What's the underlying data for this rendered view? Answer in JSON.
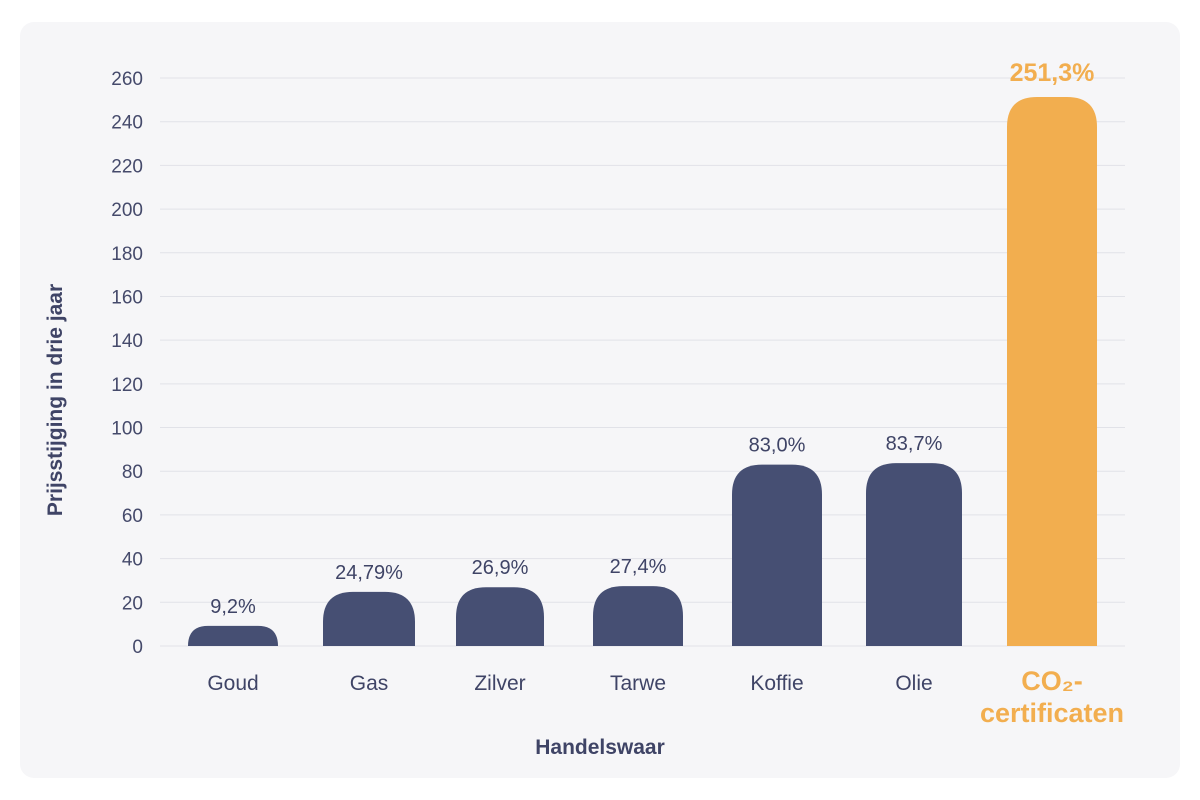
{
  "chart_data": {
    "type": "bar",
    "xlabel": "Handelswaar",
    "ylabel": "Prijsstijging in drie jaar",
    "ylim": [
      0,
      260
    ],
    "yticks": [
      0,
      20,
      40,
      60,
      80,
      100,
      120,
      140,
      160,
      180,
      200,
      220,
      240,
      260
    ],
    "grid": true,
    "categories": [
      "Goud",
      "Gas",
      "Zilver",
      "Tarwe",
      "Koffie",
      "Olie",
      "CO₂-certificaten"
    ],
    "category_lines": [
      [
        "Goud"
      ],
      [
        "Gas"
      ],
      [
        "Zilver"
      ],
      [
        "Tarwe"
      ],
      [
        "Koffie"
      ],
      [
        "Olie"
      ],
      [
        "CO₂-",
        "certificaten"
      ]
    ],
    "values": [
      9.2,
      24.79,
      26.9,
      27.4,
      83.0,
      83.7,
      251.3
    ],
    "value_labels": [
      "9,2%",
      "24,79%",
      "26,9%",
      "27,4%",
      "83,0%",
      "83,7%",
      "251,3%"
    ],
    "highlight_index": 6,
    "colors": {
      "bar": "#464f73",
      "highlight": "#f2ae4f",
      "grid": "#e1e2e8",
      "text": "#3f4466"
    }
  }
}
